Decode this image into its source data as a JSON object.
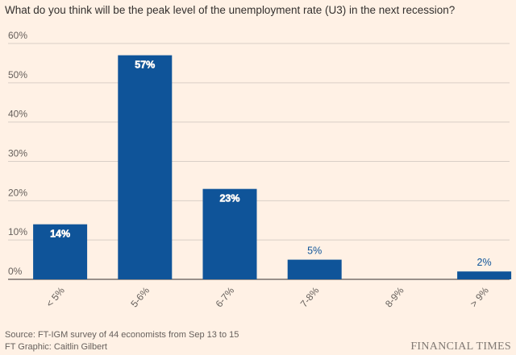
{
  "chart_data": {
    "type": "bar",
    "title": "What do you think will be the peak level of the unemployment rate (U3) in the next recession?",
    "categories": [
      "< 5%",
      "5-6%",
      "6-7%",
      "7-8%",
      "8-9%",
      "> 9%"
    ],
    "values": [
      14,
      57,
      23,
      5,
      0,
      2
    ],
    "value_labels": [
      "14%",
      "57%",
      "23%",
      "5%",
      null,
      "2%"
    ],
    "color": "#0f5499",
    "ylim": [
      0,
      60
    ],
    "yticks": [
      {
        "value": 0,
        "label": "0%"
      },
      {
        "value": 10,
        "label": "10%"
      },
      {
        "value": 20,
        "label": "20%"
      },
      {
        "value": 30,
        "label": "30%"
      },
      {
        "value": 40,
        "label": "40%"
      },
      {
        "value": 50,
        "label": "50%"
      },
      {
        "value": 60,
        "label": "60%"
      }
    ],
    "grid": true,
    "source": "Source: FT-IGM survey of 44 economists from Sep 13 to 15",
    "credit": "FT Graphic: Caitlin Gilbert",
    "brand": "FINANCIAL TIMES"
  }
}
